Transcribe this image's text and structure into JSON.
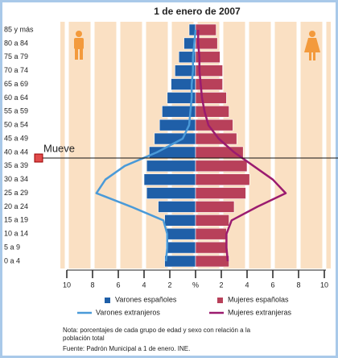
{
  "chart_data": {
    "type": "pyramid",
    "title": "1 de enero de 2007",
    "categories": [
      "85 y más",
      "80 a 84",
      "75 a 79",
      "70 a 74",
      "65 a 69",
      "60 a 64",
      "55 a 59",
      "50 a 54",
      "45 a 49",
      "40 a 44",
      "35 a 39",
      "30 a 34",
      "25 a 29",
      "20 a 24",
      "15 a 19",
      "10 a 14",
      "5 a 9",
      "0 a 4"
    ],
    "series": [
      {
        "name": "Varones españoles",
        "color": "#1f5fa8",
        "mark": "bar",
        "values": [
          -0.5,
          -0.9,
          -1.3,
          -1.6,
          -1.9,
          -2.2,
          -2.6,
          -2.8,
          -3.2,
          -3.6,
          -3.8,
          -4.0,
          -3.8,
          -2.9,
          -2.4,
          -2.3,
          -2.3,
          -2.4
        ]
      },
      {
        "name": "Mujeres españolas",
        "color": "#b8405a",
        "mark": "bar",
        "values": [
          1.6,
          1.7,
          1.9,
          2.1,
          2.1,
          2.4,
          2.6,
          2.9,
          3.2,
          3.7,
          4.0,
          4.2,
          3.9,
          3.0,
          2.6,
          2.4,
          2.4,
          2.6
        ]
      },
      {
        "name": "Varones extranjeros",
        "color": "#4a9ad8",
        "mark": "line",
        "values": [
          0,
          -0.1,
          -0.2,
          -0.2,
          -0.3,
          -0.3,
          -0.4,
          -0.5,
          -1.0,
          -3.0,
          -5.5,
          -7.0,
          -7.7,
          -5.0,
          -2.5,
          -2.2,
          -2.2,
          -2.3
        ]
      },
      {
        "name": "Mujeres extranjeras",
        "color": "#9b1b6f",
        "mark": "line",
        "values": [
          0.2,
          0.2,
          0.3,
          0.3,
          0.4,
          0.5,
          0.7,
          1.0,
          1.8,
          3.0,
          4.5,
          6.0,
          7.0,
          4.8,
          2.8,
          2.4,
          2.4,
          2.5
        ]
      }
    ],
    "xlim": [
      -10.5,
      10.5
    ],
    "xticks": [
      {
        "value": -10,
        "label": "10"
      },
      {
        "value": -8,
        "label": "8"
      },
      {
        "value": -6,
        "label": "6"
      },
      {
        "value": -4,
        "label": "4"
      },
      {
        "value": -2,
        "label": "2"
      },
      {
        "value": 0,
        "label": "%"
      },
      2,
      4,
      6,
      8,
      10
    ],
    "note": "Nota: porcentajes de cada grupo de edad y sexo con relación a la",
    "note_cont": "población total",
    "source": "Fuente: Padrón Municipal a 1 de enero. INE.",
    "slider_label": "Mueve"
  }
}
